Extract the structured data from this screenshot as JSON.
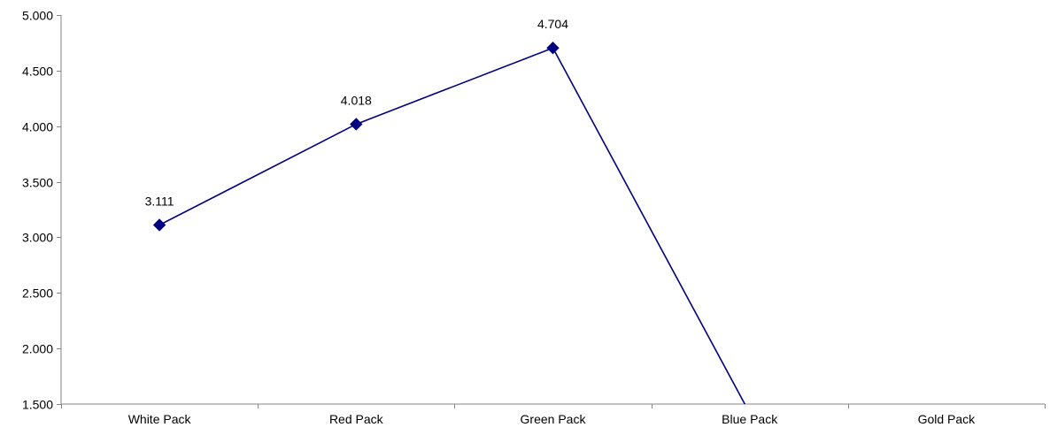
{
  "chart_data": {
    "type": "line",
    "title": "",
    "xlabel": "",
    "ylabel": "",
    "categories": [
      "White Pack",
      "Red Pack",
      "Green Pack",
      "Blue Pack",
      "Gold Pack"
    ],
    "series": [
      {
        "values": [
          3.111,
          4.018,
          4.704,
          1.42,
          null
        ],
        "data_labels": [
          "3.111",
          "4.018",
          "4.704",
          null,
          null
        ],
        "color": "#000080",
        "marker": "diamond"
      }
    ],
    "ylim": [
      1.5,
      5.0
    ],
    "y_ticks": [
      1.5,
      2.0,
      2.5,
      3.0,
      3.5,
      4.0,
      4.5,
      5.0
    ],
    "y_tick_labels": [
      "1.500",
      "2.000",
      "2.500",
      "3.000",
      "3.500",
      "4.000",
      "4.500",
      "5.000"
    ],
    "grid": false,
    "legend": "none"
  }
}
